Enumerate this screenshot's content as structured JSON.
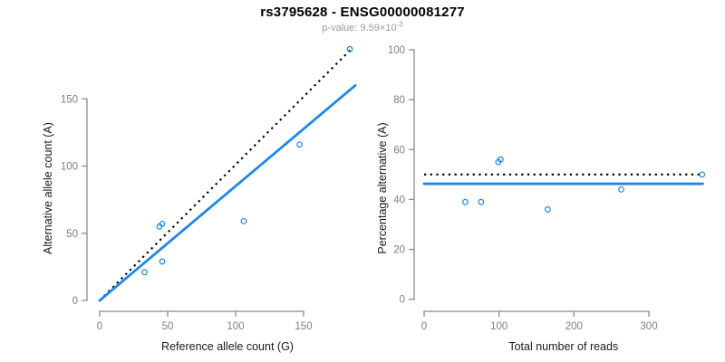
{
  "figure": {
    "title": "rs3795628 - ENSG00000081277",
    "subtitle_prefix": "p-value: ",
    "subtitle_value": "9.59×10",
    "subtitle_exponent": "-3"
  },
  "colors": {
    "background": "#FFFFFF",
    "accent_blue": "#1E87E8",
    "axis": "#8B8B8B",
    "tick_text": "#7F7F7F",
    "label_text": "#1A1A1A",
    "title_text": "#000000",
    "subtitle_text": "#999999",
    "dotted_line": "#000000"
  },
  "chart_data": [
    {
      "type": "scatter",
      "panel": "left",
      "xlabel": "Reference allele count (G)",
      "ylabel": "Alternative allele count (A)",
      "xticks": [
        0,
        50,
        100,
        150
      ],
      "yticks": [
        0,
        50,
        100,
        150
      ],
      "xlim": [
        0,
        188
      ],
      "ylim": [
        0,
        190
      ],
      "point_color": "#1E87E8",
      "points": [
        [
          33,
          21
        ],
        [
          46,
          29
        ],
        [
          44,
          55
        ],
        [
          46,
          57
        ],
        [
          106,
          59
        ],
        [
          147,
          116
        ],
        [
          184,
          187
        ]
      ],
      "lines": [
        {
          "name": "identity-expected",
          "style": "dotted",
          "color": "#000000",
          "x1": 0,
          "y1": 0,
          "x2": 186,
          "y2": 188
        },
        {
          "name": "regression-fit",
          "style": "solid",
          "color": "#1E87E8",
          "x1": 0,
          "y1": 0,
          "x2": 188,
          "y2": 160
        }
      ]
    },
    {
      "type": "scatter",
      "panel": "right",
      "xlabel": "Total number of reads",
      "ylabel": "Percentage alternative (A)",
      "xticks": [
        0,
        100,
        200,
        300
      ],
      "yticks": [
        0,
        20,
        40,
        60,
        80,
        100
      ],
      "xlim": [
        0,
        372
      ],
      "ylim": [
        0,
        100
      ],
      "point_color": "#1E87E8",
      "points": [
        [
          55,
          39
        ],
        [
          76,
          39
        ],
        [
          99,
          55
        ],
        [
          102,
          56
        ],
        [
          165,
          36
        ],
        [
          263,
          44
        ],
        [
          371,
          50
        ]
      ],
      "lines": [
        {
          "name": "expected-50pct",
          "style": "dotted",
          "color": "#000000",
          "x1": 0,
          "y1": 50,
          "x2": 372,
          "y2": 50
        },
        {
          "name": "observed-mean",
          "style": "solid",
          "color": "#1E87E8",
          "x1": 0,
          "y1": 46.3,
          "x2": 372,
          "y2": 46.3
        }
      ]
    }
  ]
}
